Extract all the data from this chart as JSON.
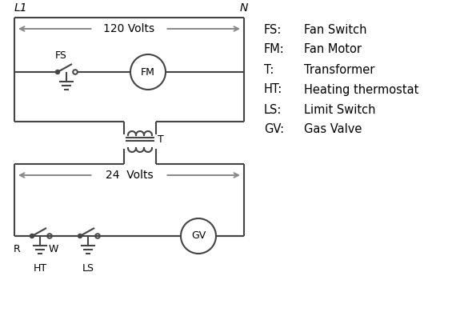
{
  "bg_color": "#ffffff",
  "line_color": "#444444",
  "arrow_color": "#888888",
  "legend": [
    [
      "FS:",
      "Fan Switch"
    ],
    [
      "FM:",
      "Fan Motor"
    ],
    [
      "T:",
      "Transformer"
    ],
    [
      "HT:",
      "Heating thermostat"
    ],
    [
      "LS:",
      "Limit Switch"
    ],
    [
      "GV:",
      "Gas Valve"
    ]
  ],
  "L1_label": "L1",
  "N_label": "N",
  "volts120": "120 Volts",
  "volts24": "24  Volts",
  "T_label": "T",
  "R_label": "R",
  "W_label": "W",
  "HT_label": "HT",
  "LS_label": "LS",
  "FS_label": "FS",
  "FM_label": "FM",
  "GV_label": "GV"
}
